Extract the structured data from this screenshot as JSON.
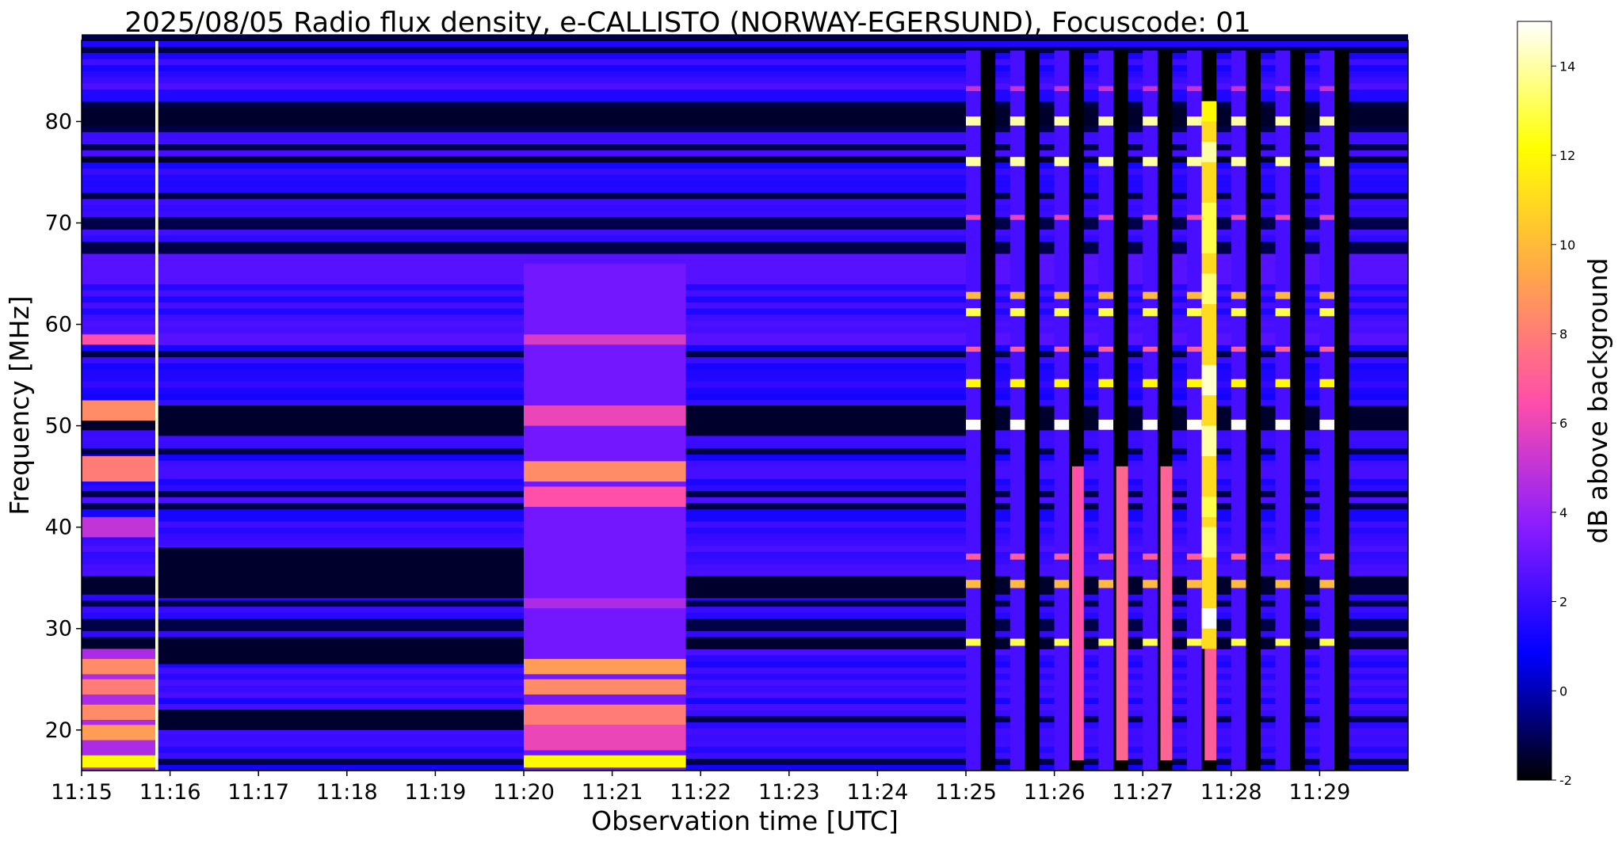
{
  "chart_data": {
    "type": "heatmap",
    "title": "2025/08/05  Radio flux density, e-CALLISTO (NORWAY-EGERSUND), Focuscode: 01",
    "xlabel": "Observation time [UTC]",
    "ylabel": "Frequency [MHz]",
    "x_range_utc": [
      "11:15:00",
      "11:30:00"
    ],
    "x_ticks": [
      "11:15",
      "11:16",
      "11:17",
      "11:18",
      "11:19",
      "11:20",
      "11:21",
      "11:22",
      "11:23",
      "11:24",
      "11:25",
      "11:26",
      "11:27",
      "11:28",
      "11:29"
    ],
    "y_range_mhz": [
      16,
      88
    ],
    "y_ticks": [
      20,
      30,
      40,
      50,
      60,
      70,
      80
    ],
    "colorbar": {
      "label": "dB above background",
      "range": [
        -2,
        15
      ],
      "ticks": [
        -2,
        0,
        2,
        4,
        6,
        8,
        10,
        12,
        14
      ],
      "colormap": [
        "#000000",
        "#0000ff",
        "#8a1cff",
        "#ff4fa8",
        "#ffa64a",
        "#ffff00",
        "#ffffff"
      ]
    },
    "features": [
      {
        "start_utc": "11:15:00",
        "end_utc": "11:15:50",
        "description": "enhanced emission across band, strongest 17-27 MHz (~9 dB) and near 45 MHz and 51 MHz"
      },
      {
        "start_utc": "11:15:50",
        "end_utc": "11:15:52",
        "description": "narrow broadband spike up to ~15 dB"
      },
      {
        "start_utc": "11:20:00",
        "end_utc": "11:21:50",
        "description": "enhanced emission, strongest 17-27 MHz and 42-46 MHz (~9 dB)"
      },
      {
        "start_utc": "11:25:00",
        "end_utc": "11:29:30",
        "description": "periodic calibration segments with bright lines near 28.5, 34, 50, 54, 61, 76, 80 MHz"
      },
      {
        "start_utc": "11:27:40",
        "end_utc": "11:27:50",
        "description": "intense drifting emission 28-82 MHz, up to ~15 dB"
      }
    ]
  }
}
